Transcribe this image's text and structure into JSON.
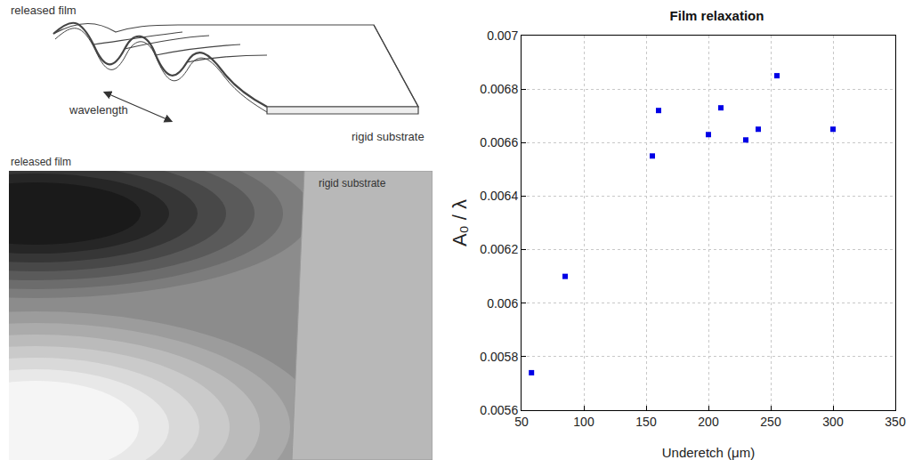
{
  "chart_data": {
    "type": "scatter",
    "title": "Film relaxation",
    "x_label": "Underetch (μm)",
    "y_label": "A₀ / λ",
    "x": [
      58,
      85,
      155,
      160,
      200,
      210,
      230,
      240,
      255,
      300
    ],
    "values": [
      0.00574,
      0.0061,
      0.00655,
      0.00672,
      0.00663,
      0.00673,
      0.00661,
      0.00665,
      0.00685,
      0.00665
    ],
    "color": "#0000e6",
    "marker": "square",
    "xlim": [
      50,
      350
    ],
    "xticks": [
      50,
      100,
      150,
      200,
      250,
      300,
      350
    ],
    "ylim": [
      0.0056,
      0.007
    ],
    "yticks": [
      0.0056,
      0.0058,
      0.006,
      0.0062,
      0.0064,
      0.0066,
      0.0068,
      0.007
    ],
    "grid": true
  },
  "diagram": {
    "schematic": {
      "label": "released film",
      "dimension": "wavelength",
      "substrate": "rigid substrate"
    },
    "image": {
      "label": "released film",
      "substrate": "rigid substrate"
    }
  }
}
